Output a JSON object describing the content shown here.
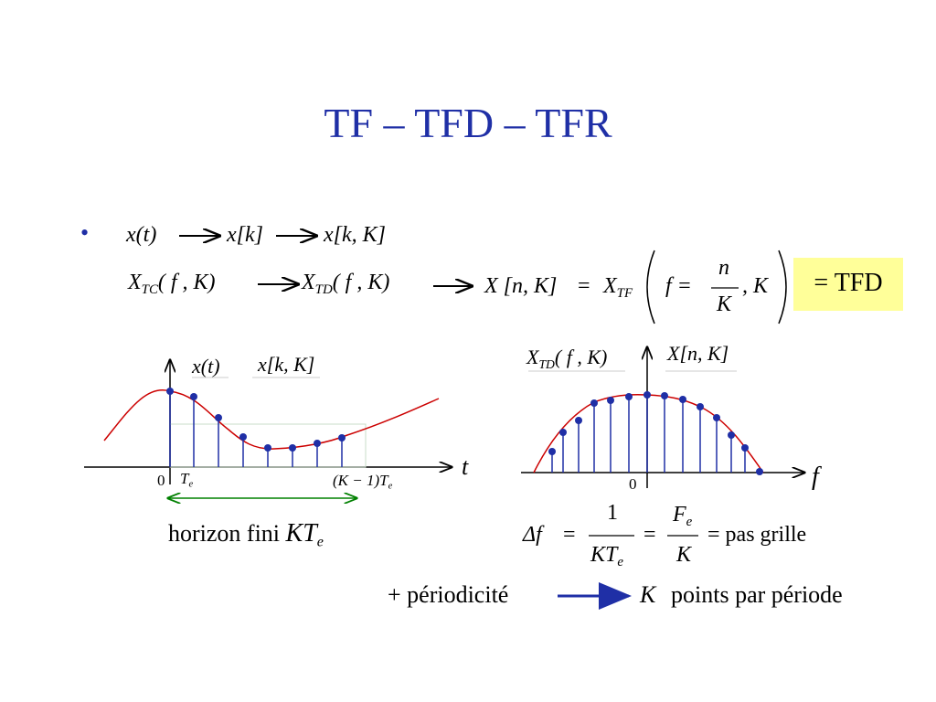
{
  "title": "TF – TFD – TFR",
  "bullet_glyph": "•",
  "line1": {
    "xt": "x(t)",
    "xk": "x[k]",
    "xkK": "x[k, K]"
  },
  "line2": {
    "xtc": "X",
    "xtc_sub": "TC",
    "xtc_args": "( f , K)",
    "xtd": "X",
    "xtd_sub": "TD",
    "xtd_args": "( f , K)",
    "xnk": "X [n, K]",
    "eq": "=",
    "xtf": "X",
    "xtf_sub": "TF",
    "f_eq": "f =",
    "num": "n",
    "den": "K",
    "comma_k": ", K",
    "tfd_label": "= TFD"
  },
  "left_plot": {
    "curve_label": "x(t)",
    "samples_label": "x[k, K]",
    "axis_label": "t",
    "origin": "0",
    "te_label": "T",
    "te_sub": "e",
    "last_label": "(K − 1)T",
    "last_sub": "e",
    "caption": "horizon fini",
    "caption_math": "KT",
    "caption_sub": "e"
  },
  "right_plot": {
    "curve_label": "X",
    "curve_sub": "TD",
    "curve_args": "( f , K)",
    "samples_label": "X[n, K]",
    "axis_label": "f",
    "origin": "0"
  },
  "delta_formula": {
    "delta_f": "Δf",
    "eq": "=",
    "num1": "1",
    "den1": "KT",
    "den1_sub": "e",
    "num2": "F",
    "num2_sub": "e",
    "den2": "K",
    "tail": "= pas  grille"
  },
  "periodicity": {
    "left": "+ périodicité",
    "k": "K",
    "right": "points par période"
  },
  "colors": {
    "title": "#1f2fa6",
    "curve": "#cc0000",
    "stems": "#1f2fa6",
    "horizon_arrow": "#008000",
    "highlight": "#ffff99"
  }
}
